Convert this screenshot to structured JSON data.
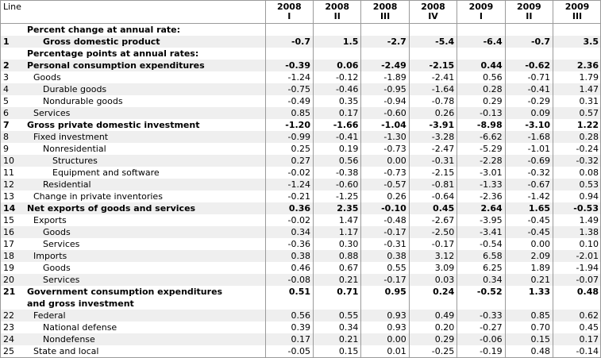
{
  "headers": {
    "line": "Line",
    "periods": [
      {
        "year": "2008",
        "q": "I"
      },
      {
        "year": "2008",
        "q": "II"
      },
      {
        "year": "2008",
        "q": "III"
      },
      {
        "year": "2008",
        "q": "IV"
      },
      {
        "year": "2009",
        "q": "I"
      },
      {
        "year": "2009",
        "q": "II"
      },
      {
        "year": "2009",
        "q": "III"
      }
    ]
  },
  "rows": [
    {
      "line": "",
      "label": "Percent change at annual rate:",
      "indent": 0,
      "bold": true,
      "values": []
    },
    {
      "line": "1",
      "label": "Gross domestic product",
      "indent": 2,
      "bold": true,
      "values": [
        "-0.7",
        "1.5",
        "-2.7",
        "-5.4",
        "-6.4",
        "-0.7",
        "3.5"
      ]
    },
    {
      "line": "",
      "label": "Percentage points at annual rates:",
      "indent": 0,
      "bold": true,
      "values": []
    },
    {
      "line": "2",
      "label": "Personal consumption expenditures",
      "indent": 0,
      "bold": true,
      "values": [
        "-0.39",
        "0.06",
        "-2.49",
        "-2.15",
        "0.44",
        "-0.62",
        "2.36"
      ]
    },
    {
      "line": "3",
      "label": "Goods",
      "indent": 1,
      "bold": false,
      "values": [
        "-1.24",
        "-0.12",
        "-1.89",
        "-2.41",
        "0.56",
        "-0.71",
        "1.79"
      ]
    },
    {
      "line": "4",
      "label": "Durable goods",
      "indent": 2,
      "bold": false,
      "values": [
        "-0.75",
        "-0.46",
        "-0.95",
        "-1.64",
        "0.28",
        "-0.41",
        "1.47"
      ]
    },
    {
      "line": "5",
      "label": "Nondurable goods",
      "indent": 2,
      "bold": false,
      "values": [
        "-0.49",
        "0.35",
        "-0.94",
        "-0.78",
        "0.29",
        "-0.29",
        "0.31"
      ]
    },
    {
      "line": "6",
      "label": "Services",
      "indent": 1,
      "bold": false,
      "values": [
        "0.85",
        "0.17",
        "-0.60",
        "0.26",
        "-0.13",
        "0.09",
        "0.57"
      ]
    },
    {
      "line": "7",
      "label": "Gross private domestic investment",
      "indent": 0,
      "bold": true,
      "values": [
        "-1.20",
        "-1.66",
        "-1.04",
        "-3.91",
        "-8.98",
        "-3.10",
        "1.22"
      ]
    },
    {
      "line": "8",
      "label": "Fixed investment",
      "indent": 1,
      "bold": false,
      "values": [
        "-0.99",
        "-0.41",
        "-1.30",
        "-3.28",
        "-6.62",
        "-1.68",
        "0.28"
      ]
    },
    {
      "line": "9",
      "label": "Nonresidential",
      "indent": 2,
      "bold": false,
      "values": [
        "0.25",
        "0.19",
        "-0.73",
        "-2.47",
        "-5.29",
        "-1.01",
        "-0.24"
      ]
    },
    {
      "line": "10",
      "label": "Structures",
      "indent": 3,
      "bold": false,
      "values": [
        "0.27",
        "0.56",
        "0.00",
        "-0.31",
        "-2.28",
        "-0.69",
        "-0.32"
      ]
    },
    {
      "line": "11",
      "label": "Equipment and software",
      "indent": 3,
      "bold": false,
      "values": [
        "-0.02",
        "-0.38",
        "-0.73",
        "-2.15",
        "-3.01",
        "-0.32",
        "0.08"
      ]
    },
    {
      "line": "12",
      "label": "Residential",
      "indent": 2,
      "bold": false,
      "values": [
        "-1.24",
        "-0.60",
        "-0.57",
        "-0.81",
        "-1.33",
        "-0.67",
        "0.53"
      ]
    },
    {
      "line": "13",
      "label": "Change in private inventories",
      "indent": 1,
      "bold": false,
      "values": [
        "-0.21",
        "-1.25",
        "0.26",
        "-0.64",
        "-2.36",
        "-1.42",
        "0.94"
      ]
    },
    {
      "line": "14",
      "label": "Net exports of goods and services",
      "indent": 0,
      "bold": true,
      "values": [
        "0.36",
        "2.35",
        "-0.10",
        "0.45",
        "2.64",
        "1.65",
        "-0.53"
      ]
    },
    {
      "line": "15",
      "label": "Exports",
      "indent": 1,
      "bold": false,
      "values": [
        "-0.02",
        "1.47",
        "-0.48",
        "-2.67",
        "-3.95",
        "-0.45",
        "1.49"
      ]
    },
    {
      "line": "16",
      "label": "Goods",
      "indent": 2,
      "bold": false,
      "values": [
        "0.34",
        "1.17",
        "-0.17",
        "-2.50",
        "-3.41",
        "-0.45",
        "1.38"
      ]
    },
    {
      "line": "17",
      "label": "Services",
      "indent": 2,
      "bold": false,
      "values": [
        "-0.36",
        "0.30",
        "-0.31",
        "-0.17",
        "-0.54",
        "0.00",
        "0.10"
      ]
    },
    {
      "line": "18",
      "label": "Imports",
      "indent": 1,
      "bold": false,
      "values": [
        "0.38",
        "0.88",
        "0.38",
        "3.12",
        "6.58",
        "2.09",
        "-2.01"
      ]
    },
    {
      "line": "19",
      "label": "Goods",
      "indent": 2,
      "bold": false,
      "values": [
        "0.46",
        "0.67",
        "0.55",
        "3.09",
        "6.25",
        "1.89",
        "-1.94"
      ]
    },
    {
      "line": "20",
      "label": "Services",
      "indent": 2,
      "bold": false,
      "values": [
        "-0.08",
        "0.21",
        "-0.17",
        "0.03",
        "0.34",
        "0.21",
        "-0.07"
      ]
    },
    {
      "line": "21",
      "label": "Government consumption expenditures\n    and gross investment",
      "indent": 0,
      "bold": true,
      "values": [
        "0.51",
        "0.71",
        "0.95",
        "0.24",
        "-0.52",
        "1.33",
        "0.48"
      ]
    },
    {
      "line": "22",
      "label": "Federal",
      "indent": 1,
      "bold": false,
      "values": [
        "0.56",
        "0.55",
        "0.93",
        "0.49",
        "-0.33",
        "0.85",
        "0.62"
      ]
    },
    {
      "line": "23",
      "label": "National defense",
      "indent": 2,
      "bold": false,
      "values": [
        "0.39",
        "0.34",
        "0.93",
        "0.20",
        "-0.27",
        "0.70",
        "0.45"
      ]
    },
    {
      "line": "24",
      "label": "Nondefense",
      "indent": 2,
      "bold": false,
      "values": [
        "0.17",
        "0.21",
        "0.00",
        "0.29",
        "-0.06",
        "0.15",
        "0.17"
      ]
    },
    {
      "line": "25",
      "label": "State and local",
      "indent": 1,
      "bold": false,
      "values": [
        "-0.05",
        "0.15",
        "0.01",
        "-0.25",
        "-0.19",
        "0.48",
        "-0.14"
      ]
    }
  ]
}
